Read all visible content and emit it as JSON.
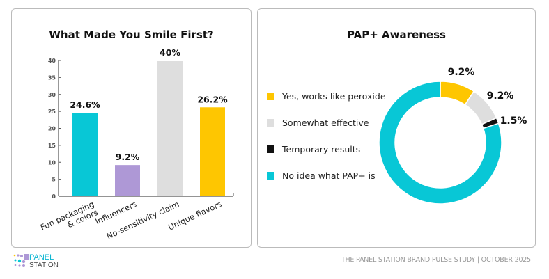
{
  "chart_data": [
    {
      "type": "bar",
      "title": "What Made You Smile First?",
      "categories": [
        "Fun packaging & colors",
        "Influencers",
        "No-sensitivity claim",
        "Unique flavors"
      ],
      "category_lines": [
        [
          "Fun packaging",
          "& colors"
        ],
        [
          "Influencers"
        ],
        [
          "No-sensitivity claim"
        ],
        [
          "Unique flavors"
        ]
      ],
      "values": [
        24.6,
        9.2,
        40,
        26.2
      ],
      "labels": [
        "24.6%",
        "9.2%",
        "40%",
        "26.2%"
      ],
      "colors": [
        "#08c7d6",
        "#ae98d6",
        "#dedede",
        "#fec601"
      ],
      "ylim": [
        0,
        40
      ],
      "yticks": [
        0,
        5,
        10,
        15,
        20,
        25,
        30,
        35,
        40
      ],
      "grid": false
    },
    {
      "type": "pie",
      "title": "PAP+ Awareness",
      "donut": true,
      "categories": [
        "Yes, works like peroxide",
        "Somewhat effective",
        "Temporary results",
        "No idea what PAP+ is"
      ],
      "values": [
        9.2,
        9.2,
        1.5,
        80.1
      ],
      "labels": [
        "9.2%",
        "9.2%",
        "1.5%",
        ""
      ],
      "colors": [
        "#fec601",
        "#dedede",
        "#111111",
        "#08c7d6"
      ],
      "legend": "left"
    }
  ],
  "footer": "THE PANEL STATION BRAND PULSE STUDY | OCTOBER 2025",
  "logo": {
    "line1": "PANEL",
    "line2": "STATION"
  }
}
